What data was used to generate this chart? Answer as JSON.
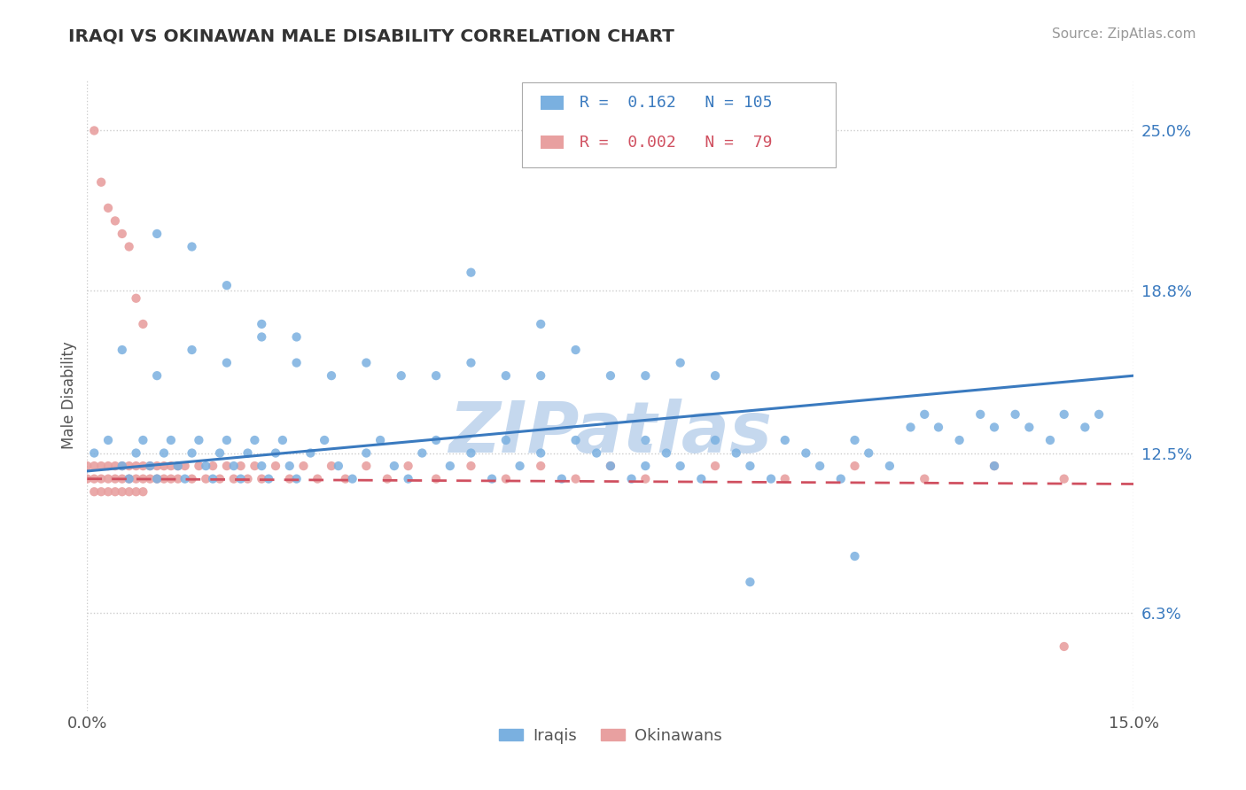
{
  "title": "IRAQI VS OKINAWAN MALE DISABILITY CORRELATION CHART",
  "source_text": "Source: ZipAtlas.com",
  "ylabel": "Male Disability",
  "xlim": [
    0.0,
    0.15
  ],
  "ylim": [
    0.025,
    0.27
  ],
  "ytick_labels": [
    "6.3%",
    "12.5%",
    "18.8%",
    "25.0%"
  ],
  "ytick_values": [
    0.063,
    0.125,
    0.188,
    0.25
  ],
  "xtick_labels": [
    "0.0%",
    "15.0%"
  ],
  "xtick_values": [
    0.0,
    0.15
  ],
  "iraqis_color": "#7ab0e0",
  "okinawans_color": "#e8a0a0",
  "iraqis_line_color": "#3a7abf",
  "okinawans_line_color": "#d05060",
  "legend_iraqis": "Iraqis",
  "legend_okinawans": "Okinawans",
  "iraqis_R": 0.162,
  "iraqis_N": 105,
  "okinawans_R": 0.002,
  "okinawans_N": 79,
  "watermark": "ZIPatlas",
  "watermark_color": "#c5d8ee",
  "grid_color": "#cccccc",
  "background_color": "#ffffff",
  "iraqis_x": [
    0.001,
    0.003,
    0.005,
    0.006,
    0.007,
    0.008,
    0.009,
    0.01,
    0.011,
    0.012,
    0.013,
    0.014,
    0.015,
    0.016,
    0.017,
    0.018,
    0.019,
    0.02,
    0.021,
    0.022,
    0.023,
    0.024,
    0.025,
    0.026,
    0.027,
    0.028,
    0.029,
    0.03,
    0.032,
    0.034,
    0.036,
    0.038,
    0.04,
    0.042,
    0.044,
    0.046,
    0.048,
    0.05,
    0.052,
    0.055,
    0.058,
    0.06,
    0.062,
    0.065,
    0.068,
    0.07,
    0.073,
    0.075,
    0.078,
    0.08,
    0.083,
    0.085,
    0.088,
    0.09,
    0.093,
    0.095,
    0.098,
    0.1,
    0.103,
    0.105,
    0.108,
    0.11,
    0.112,
    0.115,
    0.118,
    0.12,
    0.122,
    0.125,
    0.128,
    0.13,
    0.133,
    0.135,
    0.138,
    0.14,
    0.143,
    0.145,
    0.005,
    0.01,
    0.015,
    0.02,
    0.025,
    0.03,
    0.035,
    0.04,
    0.045,
    0.05,
    0.055,
    0.06,
    0.065,
    0.07,
    0.075,
    0.08,
    0.085,
    0.09,
    0.01,
    0.015,
    0.02,
    0.025,
    0.03,
    0.055,
    0.065,
    0.08,
    0.095,
    0.11,
    0.13
  ],
  "iraqis_y": [
    0.125,
    0.13,
    0.12,
    0.115,
    0.125,
    0.13,
    0.12,
    0.115,
    0.125,
    0.13,
    0.12,
    0.115,
    0.125,
    0.13,
    0.12,
    0.115,
    0.125,
    0.13,
    0.12,
    0.115,
    0.125,
    0.13,
    0.12,
    0.115,
    0.125,
    0.13,
    0.12,
    0.115,
    0.125,
    0.13,
    0.12,
    0.115,
    0.125,
    0.13,
    0.12,
    0.115,
    0.125,
    0.13,
    0.12,
    0.125,
    0.115,
    0.13,
    0.12,
    0.125,
    0.115,
    0.13,
    0.125,
    0.12,
    0.115,
    0.13,
    0.125,
    0.12,
    0.115,
    0.13,
    0.125,
    0.12,
    0.115,
    0.13,
    0.125,
    0.12,
    0.115,
    0.13,
    0.125,
    0.12,
    0.135,
    0.14,
    0.135,
    0.13,
    0.14,
    0.135,
    0.14,
    0.135,
    0.13,
    0.14,
    0.135,
    0.14,
    0.165,
    0.155,
    0.165,
    0.16,
    0.17,
    0.16,
    0.155,
    0.16,
    0.155,
    0.155,
    0.16,
    0.155,
    0.155,
    0.165,
    0.155,
    0.155,
    0.16,
    0.155,
    0.21,
    0.205,
    0.19,
    0.175,
    0.17,
    0.195,
    0.175,
    0.12,
    0.075,
    0.085,
    0.12
  ],
  "okinawans_x": [
    0.0,
    0.0,
    0.001,
    0.001,
    0.001,
    0.002,
    0.002,
    0.002,
    0.003,
    0.003,
    0.003,
    0.004,
    0.004,
    0.004,
    0.005,
    0.005,
    0.005,
    0.006,
    0.006,
    0.006,
    0.007,
    0.007,
    0.007,
    0.008,
    0.008,
    0.008,
    0.009,
    0.009,
    0.01,
    0.01,
    0.011,
    0.011,
    0.012,
    0.012,
    0.013,
    0.013,
    0.014,
    0.015,
    0.016,
    0.017,
    0.018,
    0.019,
    0.02,
    0.021,
    0.022,
    0.023,
    0.024,
    0.025,
    0.027,
    0.029,
    0.031,
    0.033,
    0.035,
    0.037,
    0.04,
    0.043,
    0.046,
    0.05,
    0.055,
    0.06,
    0.065,
    0.07,
    0.075,
    0.08,
    0.09,
    0.1,
    0.11,
    0.12,
    0.13,
    0.14,
    0.001,
    0.002,
    0.003,
    0.004,
    0.005,
    0.006,
    0.007,
    0.008,
    0.14
  ],
  "okinawans_y": [
    0.12,
    0.115,
    0.12,
    0.115,
    0.11,
    0.12,
    0.115,
    0.11,
    0.12,
    0.115,
    0.11,
    0.12,
    0.115,
    0.11,
    0.12,
    0.115,
    0.11,
    0.12,
    0.115,
    0.11,
    0.12,
    0.115,
    0.11,
    0.12,
    0.115,
    0.11,
    0.12,
    0.115,
    0.12,
    0.115,
    0.12,
    0.115,
    0.12,
    0.115,
    0.12,
    0.115,
    0.12,
    0.115,
    0.12,
    0.115,
    0.12,
    0.115,
    0.12,
    0.115,
    0.12,
    0.115,
    0.12,
    0.115,
    0.12,
    0.115,
    0.12,
    0.115,
    0.12,
    0.115,
    0.12,
    0.115,
    0.12,
    0.115,
    0.12,
    0.115,
    0.12,
    0.115,
    0.12,
    0.115,
    0.12,
    0.115,
    0.12,
    0.115,
    0.12,
    0.115,
    0.25,
    0.23,
    0.22,
    0.215,
    0.21,
    0.205,
    0.185,
    0.175,
    0.05
  ]
}
